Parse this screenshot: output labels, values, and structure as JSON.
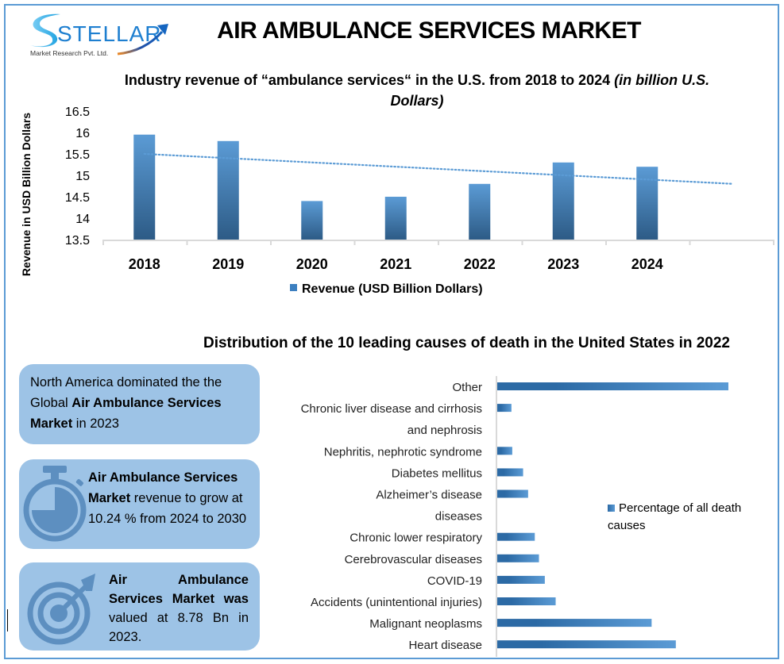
{
  "logo": {
    "brand": "STELLAR",
    "subtitle": "Market Research Pvt. Ltd."
  },
  "header": {
    "title": "AIR AMBULANCE SERVICES MARKET"
  },
  "colors": {
    "frame": "#5b9bd5",
    "bar_light": "#5b9bd5",
    "bar_dark": "#2d5b86",
    "card": "#9dc3e6",
    "icon": "#5d8fc0"
  },
  "chart_data": [
    {
      "type": "bar",
      "title_main": "Industry revenue of “ambulance services“ in the U.S. from 2018 to 2024 ",
      "title_italic": "(in billion U.S. Dollars)",
      "categories": [
        "2018",
        "2019",
        "2020",
        "2021",
        "2022",
        "2023",
        "2024"
      ],
      "series": [
        {
          "name": "Revenue (USD Billion Dollars)",
          "values": [
            15.95,
            15.8,
            14.4,
            14.5,
            14.8,
            15.3,
            15.2
          ]
        }
      ],
      "trendline": {
        "type": "linear",
        "style": "dotted",
        "start": 15.5,
        "end": 14.8
      },
      "ylabel": "Revenue in USD Billion Dollars",
      "xlabel": "",
      "ylim": [
        13.5,
        16.5
      ],
      "yticks": [
        "16.5",
        "16",
        "15.5",
        "15",
        "14.5",
        "14",
        "13.5"
      ],
      "legend": "bottom",
      "grid": false
    },
    {
      "type": "bar",
      "orientation": "horizontal",
      "title": "Distribution of the 10 leading causes of death in the United States in 2022",
      "rows": [
        {
          "label": "Other",
          "value": 27.7
        },
        {
          "label": "Chronic liver disease and cirrhosis",
          "value": 1.7
        },
        {
          "label": "and nephrosis",
          "value": null
        },
        {
          "label": "Nephritis, nephrotic syndrome",
          "value": 1.8
        },
        {
          "label": "Diabetes mellitus",
          "value": 3.1
        },
        {
          "label": "Alzheimer’s disease",
          "value": 3.7
        },
        {
          "label": "diseases",
          "value": null
        },
        {
          "label": "Chronic lower respiratory",
          "value": 4.5
        },
        {
          "label": "Cerebrovascular diseases",
          "value": 5.0
        },
        {
          "label": "COVID-19",
          "value": 5.7
        },
        {
          "label": "Accidents (unintentional injuries)",
          "value": 7.0
        },
        {
          "label": "Malignant neoplasms",
          "value": 18.5
        },
        {
          "label": "Heart disease",
          "value": 21.4
        }
      ],
      "series_name": "Percentage of all death causes",
      "unit": "%",
      "xlim": [
        0,
        30
      ],
      "legend": "right",
      "grid": false
    }
  ],
  "cards": [
    {
      "icon": "none",
      "parts": [
        {
          "text": "North America dominated the the Global ",
          "bold": false
        },
        {
          "text": "Air Ambulance Services Market",
          "bold": true
        },
        {
          "text": " in 2023",
          "bold": false
        }
      ]
    },
    {
      "icon": "stopwatch-icon",
      "parts": [
        {
          "text": "Air Ambulance Services Market",
          "bold": true
        },
        {
          "text": " revenue to grow at 10.24 % from 2024 to 2030",
          "bold": false
        }
      ]
    },
    {
      "icon": "target-icon",
      "parts": [
        {
          "text": "Air Ambulance Services Market was",
          "bold": true
        },
        {
          "text": " valued at 8.78 Bn in 2023.",
          "bold": false
        }
      ]
    }
  ]
}
